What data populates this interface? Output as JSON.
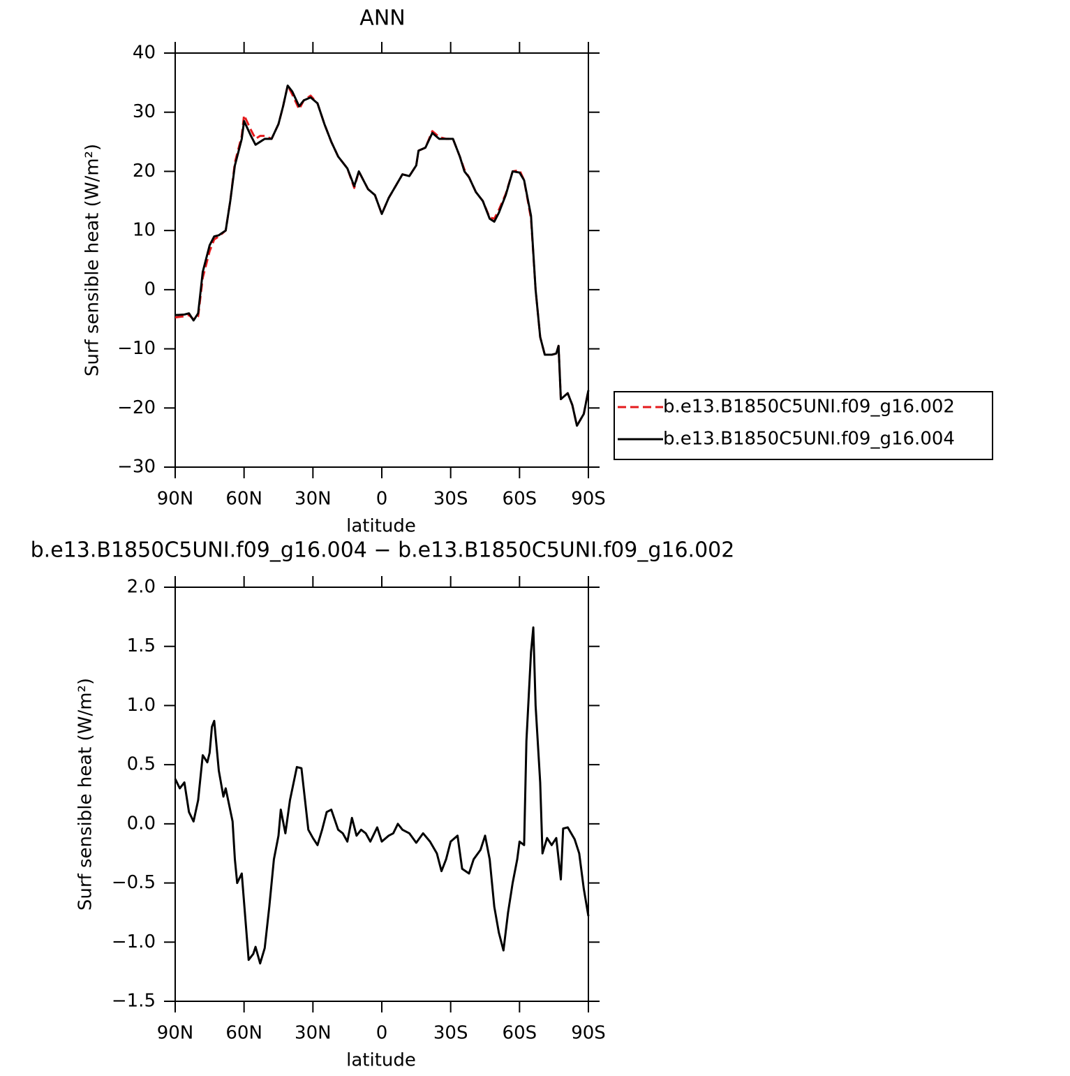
{
  "chart_data": [
    {
      "type": "line",
      "title": "ANN",
      "xlabel": "latitude",
      "ylabel": "Surf sensible heat (W/m²)",
      "x": [
        90,
        86,
        84,
        82,
        80,
        78,
        75,
        73,
        71,
        68,
        66,
        64,
        61,
        60,
        57,
        55,
        53,
        51,
        48,
        45,
        43,
        41,
        39,
        36,
        34,
        31,
        28,
        25,
        22,
        19,
        15,
        12,
        10,
        8,
        6,
        3,
        0,
        -3,
        -6,
        -9,
        -12,
        -15,
        -16,
        -19,
        -22,
        -25,
        -28,
        -31,
        -34,
        -36,
        -38,
        -41,
        -44,
        -47,
        -49,
        -51,
        -54,
        -57,
        -60,
        -62,
        -65,
        -67,
        -69,
        -71,
        -74,
        -76,
        -77,
        -78,
        -81,
        -83,
        -85,
        -88,
        -90
      ],
      "series": [
        {
          "name": "b.e13.B1850C5UNI.f09_g16.002",
          "color": "#e41a1c",
          "dash": true,
          "values": [
            -4.7,
            -4.5,
            -4.3,
            -5.0,
            -4.5,
            2,
            6.5,
            8.5,
            9,
            10,
            15,
            21.5,
            26,
            29.5,
            27,
            25.5,
            26,
            26,
            25.5,
            28,
            31,
            34.5,
            33,
            30.5,
            32,
            32.8,
            31.5,
            28,
            25,
            22.5,
            20.5,
            17.2,
            20,
            18.5,
            17,
            16,
            12.8,
            15.5,
            17.5,
            19.5,
            19.2,
            21,
            23.5,
            24,
            26.8,
            25.8,
            25.5,
            25.5,
            22.5,
            20.3,
            19,
            16.5,
            15,
            12.2,
            12,
            13.5,
            16.2,
            20,
            20.2,
            18.5,
            12,
            0,
            -8,
            -11,
            -11,
            -10.8,
            -9.5,
            -18.5,
            -17.5,
            -19.5,
            -23,
            -21,
            -17
          ]
        },
        {
          "name": "b.e13.B1850C5UNI.f09_g16.004",
          "color": "#000000",
          "dash": false,
          "values": [
            -4.3,
            -4.2,
            -4.0,
            -5.2,
            -4,
            3,
            7.5,
            9,
            9.2,
            10,
            15,
            21,
            25.5,
            28.5,
            26,
            24.5,
            25,
            25.5,
            25.5,
            28,
            31,
            34.5,
            33.5,
            31,
            32,
            32.5,
            31.5,
            28,
            25,
            22.5,
            20.5,
            17.5,
            20,
            18.5,
            17,
            16,
            12.8,
            15.5,
            17.5,
            19.5,
            19.2,
            21,
            23.5,
            24,
            26.5,
            25.5,
            25.5,
            25.5,
            22.5,
            20,
            19,
            16.5,
            15,
            12,
            11.5,
            13,
            16,
            20,
            19.8,
            18.5,
            12.5,
            0,
            -8,
            -11,
            -11,
            -10.8,
            -9.5,
            -18.5,
            -17.5,
            -19.5,
            -23,
            -21,
            -17
          ]
        }
      ],
      "xlim": [
        90,
        -90
      ],
      "xticks": [
        {
          "value": 90,
          "label": "90N"
        },
        {
          "value": 60,
          "label": "60N"
        },
        {
          "value": 30,
          "label": "30N"
        },
        0,
        {
          "value": -30,
          "label": "30S"
        },
        {
          "value": -60,
          "label": "60S"
        },
        {
          "value": -90,
          "label": "90S"
        }
      ],
      "ylim": [
        -30,
        40
      ],
      "yticks": [
        {
          "value": -30,
          "label": "−30"
        },
        {
          "value": -20,
          "label": "−20"
        },
        {
          "value": -10,
          "label": "−10"
        },
        0,
        10,
        20,
        30,
        40
      ],
      "legend": "right"
    },
    {
      "type": "line",
      "title": "b.e13.B1850C5UNI.f09_g16.004 − b.e13.B1850C5UNI.f09_g16.002",
      "xlabel": "latitude",
      "ylabel": "Surf sensible heat (W/m²)",
      "x": [
        90,
        88,
        86,
        84,
        82,
        80,
        78,
        76,
        75,
        74,
        73,
        71,
        69,
        68,
        65,
        64,
        63,
        61,
        58,
        56,
        55,
        53,
        51,
        49,
        47,
        45,
        44,
        42,
        40,
        37,
        35,
        32,
        30,
        28,
        26,
        24,
        22,
        19,
        17,
        15,
        13,
        11,
        9,
        7,
        5,
        2,
        0,
        -3,
        -5,
        -7,
        -9,
        -12,
        -15,
        -18,
        -21,
        -24,
        -26,
        -28,
        -30,
        -33,
        -35,
        -38,
        -40,
        -43,
        -45,
        -47,
        -49,
        -51,
        -53,
        -55,
        -57,
        -59,
        -60,
        -62,
        -63,
        -65,
        -66,
        -67,
        -69,
        -70,
        -72,
        -74,
        -76,
        -78,
        -79,
        -81,
        -84,
        -86,
        -88,
        -90
      ],
      "series": [
        {
          "color": "#000000",
          "dash": false,
          "values": [
            0.38,
            0.3,
            0.35,
            0.1,
            0.02,
            0.2,
            0.58,
            0.52,
            0.6,
            0.82,
            0.87,
            0.45,
            0.23,
            0.3,
            0.02,
            -0.3,
            -0.5,
            -0.42,
            -1.15,
            -1.1,
            -1.04,
            -1.18,
            -1.05,
            -0.7,
            -0.3,
            -0.1,
            0.12,
            -0.08,
            0.2,
            0.48,
            0.47,
            -0.05,
            -0.12,
            -0.18,
            -0.05,
            0.1,
            0.12,
            -0.05,
            -0.08,
            -0.15,
            0.05,
            -0.1,
            -0.05,
            -0.08,
            -0.15,
            -0.03,
            -0.15,
            -0.1,
            -0.08,
            0.0,
            -0.05,
            -0.08,
            -0.16,
            -0.08,
            -0.15,
            -0.25,
            -0.4,
            -0.3,
            -0.15,
            -0.1,
            -0.38,
            -0.42,
            -0.3,
            -0.22,
            -0.1,
            -0.3,
            -0.7,
            -0.92,
            -1.07,
            -0.75,
            -0.5,
            -0.3,
            -0.15,
            -0.18,
            0.7,
            1.45,
            1.66,
            1.0,
            0.35,
            -0.25,
            -0.12,
            -0.18,
            -0.12,
            -0.47,
            -0.04,
            -0.03,
            -0.13,
            -0.25,
            -0.55,
            -0.78
          ]
        }
      ],
      "xlim": [
        90,
        -90
      ],
      "xticks": [
        {
          "value": 90,
          "label": "90N"
        },
        {
          "value": 60,
          "label": "60N"
        },
        {
          "value": 30,
          "label": "30N"
        },
        0,
        {
          "value": -30,
          "label": "30S"
        },
        {
          "value": -60,
          "label": "60S"
        },
        {
          "value": -90,
          "label": "90S"
        }
      ],
      "ylim": [
        -1.5,
        2
      ],
      "yticks": [
        {
          "value": -1.5,
          "label": "−1.5"
        },
        {
          "value": -1,
          "label": "−1.0"
        },
        {
          "value": -0.5,
          "label": "−0.5"
        },
        {
          "value": 0,
          "label": "0.0"
        },
        {
          "value": 0.5,
          "label": "0.5"
        },
        {
          "value": 1,
          "label": "1.0"
        },
        {
          "value": 1.5,
          "label": "1.5"
        },
        {
          "value": 2,
          "label": "2.0"
        }
      ]
    }
  ]
}
